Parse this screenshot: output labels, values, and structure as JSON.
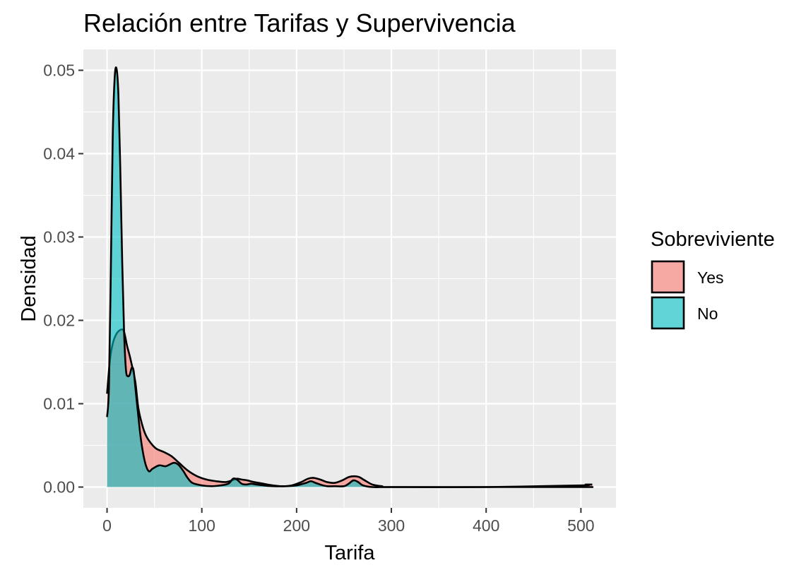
{
  "chart_data": {
    "type": "area",
    "title": "Relación entre Tarifas y Supervivencia",
    "xlabel": "Tarifa",
    "ylabel": "Densidad",
    "xlim": [
      -25,
      537
    ],
    "ylim": [
      -0.0025,
      0.0525
    ],
    "x_ticks": [
      0,
      100,
      200,
      300,
      400,
      500
    ],
    "x_tick_labels": [
      "0",
      "100",
      "200",
      "300",
      "400",
      "500"
    ],
    "y_ticks": [
      0,
      0.01,
      0.02,
      0.03,
      0.04,
      0.05
    ],
    "y_tick_labels": [
      "0.00",
      "0.01",
      "0.02",
      "0.03",
      "0.04",
      "0.05"
    ],
    "grid": true,
    "legend": {
      "title": "Sobreviviente",
      "position": "right"
    },
    "series": [
      {
        "name": "Yes",
        "color": "#F8766D",
        "points": [
          [
            0,
            0.0112
          ],
          [
            3,
            0.0152
          ],
          [
            6,
            0.0172
          ],
          [
            10,
            0.0184
          ],
          [
            15,
            0.0189
          ],
          [
            18,
            0.0186
          ],
          [
            21,
            0.017
          ],
          [
            24,
            0.0157
          ],
          [
            27,
            0.0142
          ],
          [
            30,
            0.0125
          ],
          [
            33,
            0.0095
          ],
          [
            37,
            0.0075
          ],
          [
            41,
            0.0062
          ],
          [
            46,
            0.0053
          ],
          [
            52,
            0.0046
          ],
          [
            60,
            0.0042
          ],
          [
            68,
            0.0037
          ],
          [
            76,
            0.0029
          ],
          [
            85,
            0.002
          ],
          [
            95,
            0.0013
          ],
          [
            105,
            0.0009
          ],
          [
            115,
            0.0007
          ],
          [
            125,
            0.0006
          ],
          [
            132,
            0.0008
          ],
          [
            137,
            0.001
          ],
          [
            142,
            0.0009
          ],
          [
            148,
            0.0008
          ],
          [
            155,
            0.0006
          ],
          [
            165,
            0.0004
          ],
          [
            175,
            0.0002
          ],
          [
            185,
            0.0001
          ],
          [
            195,
            0.0002
          ],
          [
            205,
            0.0006
          ],
          [
            212,
            0.001
          ],
          [
            218,
            0.0011
          ],
          [
            225,
            0.0009
          ],
          [
            232,
            0.0006
          ],
          [
            240,
            0.0005
          ],
          [
            248,
            0.0008
          ],
          [
            255,
            0.0012
          ],
          [
            261,
            0.0013
          ],
          [
            266,
            0.0012
          ],
          [
            272,
            0.0008
          ],
          [
            280,
            0.0003
          ],
          [
            290,
            0.0001
          ],
          [
            300,
            0.0
          ],
          [
            400,
            0.0
          ],
          [
            500,
            0.0002
          ],
          [
            505,
            0.0003
          ],
          [
            512,
            0.0003
          ]
        ]
      },
      {
        "name": "No",
        "color": "#00BFC4",
        "points": [
          [
            0,
            0.0084
          ],
          [
            2,
            0.012
          ],
          [
            4,
            0.026
          ],
          [
            6,
            0.042
          ],
          [
            8,
            0.049
          ],
          [
            10,
            0.0502
          ],
          [
            12,
            0.047
          ],
          [
            14,
            0.038
          ],
          [
            16,
            0.027
          ],
          [
            18,
            0.0185
          ],
          [
            20,
            0.014
          ],
          [
            22,
            0.0133
          ],
          [
            24,
            0.0135
          ],
          [
            26,
            0.0143
          ],
          [
            28,
            0.014
          ],
          [
            30,
            0.0118
          ],
          [
            33,
            0.0085
          ],
          [
            36,
            0.0055
          ],
          [
            40,
            0.003
          ],
          [
            44,
            0.0019
          ],
          [
            48,
            0.0022
          ],
          [
            55,
            0.0026
          ],
          [
            62,
            0.0025
          ],
          [
            70,
            0.0029
          ],
          [
            75,
            0.0027
          ],
          [
            80,
            0.002
          ],
          [
            85,
            0.0011
          ],
          [
            90,
            0.0005
          ],
          [
            100,
            0.0002
          ],
          [
            110,
            0.0001
          ],
          [
            120,
            0.0002
          ],
          [
            128,
            0.0004
          ],
          [
            133,
            0.001
          ],
          [
            137,
            0.0009
          ],
          [
            142,
            0.0004
          ],
          [
            147,
            0.0003
          ],
          [
            152,
            0.0004
          ],
          [
            158,
            0.0003
          ],
          [
            165,
            0.0002
          ],
          [
            175,
            0.0001
          ],
          [
            190,
            0.0001
          ],
          [
            200,
            0.0002
          ],
          [
            210,
            0.0005
          ],
          [
            215,
            0.0007
          ],
          [
            220,
            0.0005
          ],
          [
            225,
            0.0003
          ],
          [
            232,
            0.0001
          ],
          [
            240,
            0.0001
          ],
          [
            250,
            0.0001
          ],
          [
            255,
            0.0004
          ],
          [
            260,
            0.0008
          ],
          [
            265,
            0.0006
          ],
          [
            270,
            0.0002
          ],
          [
            280,
            0.0
          ],
          [
            300,
            0.0
          ],
          [
            400,
            0.0
          ],
          [
            500,
            0.0
          ],
          [
            512,
            0.0
          ]
        ]
      }
    ]
  }
}
